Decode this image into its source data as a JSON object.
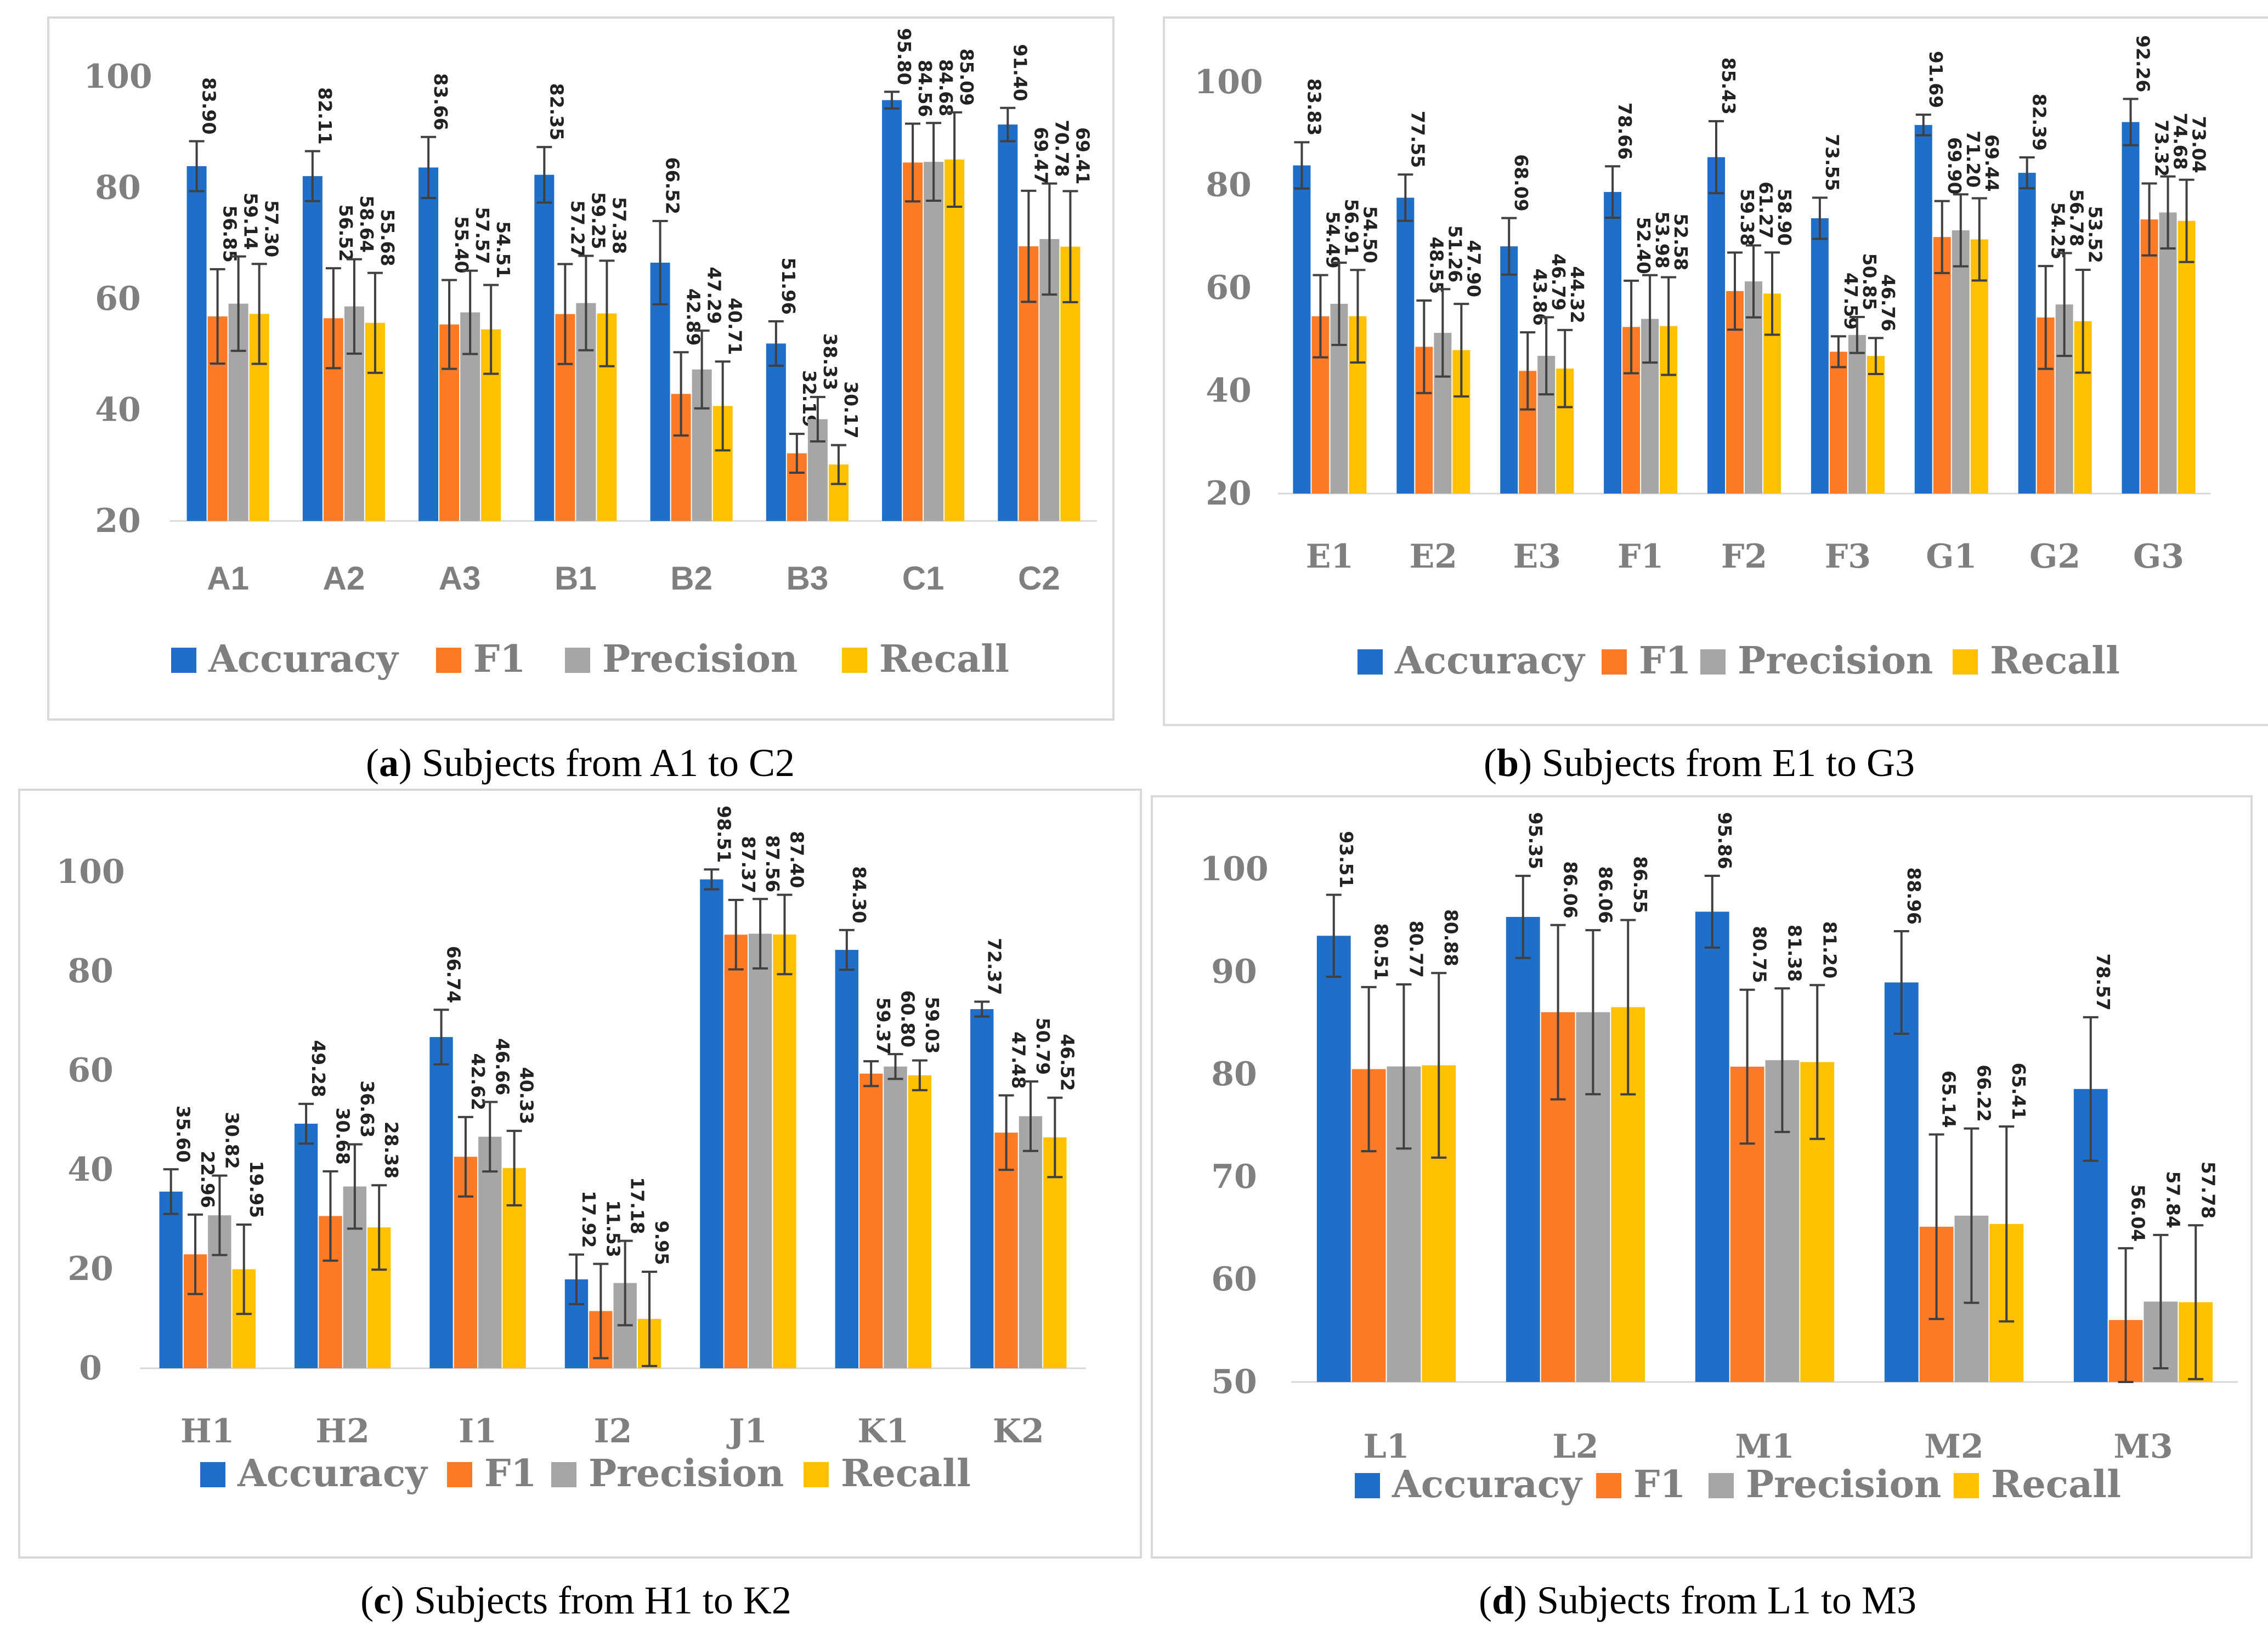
{
  "series_names": [
    "Accuracy",
    "F1",
    "Precision",
    "Recall"
  ],
  "colors": {
    "Accuracy": "#1f6fc8",
    "F1": "#fd7a26",
    "Precision": "#a6a6a6",
    "Recall": "#ffc000"
  },
  "chart_data": [
    {
      "type": "bar",
      "panel": "a",
      "caption_letter": "a",
      "caption_rest": "Subjects from A1 to C2",
      "categories": [
        "A1",
        "A2",
        "A3",
        "B1",
        "B2",
        "B3",
        "C1",
        "C2"
      ],
      "series": [
        {
          "name": "Accuracy",
          "values": [
            83.9,
            82.11,
            83.66,
            82.35,
            66.52,
            51.96,
            95.8,
            91.4
          ],
          "labels": [
            "83.90",
            "82.11",
            "83.66",
            "82.35",
            "66.52",
            "51.96",
            "95.80",
            "91.40"
          ]
        },
        {
          "name": "F1",
          "values": [
            56.85,
            56.52,
            55.4,
            57.27,
            42.89,
            32.19,
            84.56,
            69.47
          ],
          "labels": [
            "56.85",
            "56.52",
            "55.40",
            "57.27",
            "42.89",
            "32.19",
            "84.56",
            "69.47"
          ]
        },
        {
          "name": "Precision",
          "values": [
            59.14,
            58.64,
            57.57,
            59.25,
            47.29,
            38.33,
            84.68,
            70.78
          ],
          "labels": [
            "59.14",
            "58.64",
            "57.57",
            "59.25",
            "47.29",
            "38.33",
            "84.68",
            "70.78"
          ]
        },
        {
          "name": "Recall",
          "values": [
            57.3,
            55.68,
            54.51,
            57.38,
            40.71,
            30.17,
            85.09,
            69.41
          ],
          "labels": [
            "57.30",
            "55.68",
            "54.51",
            "57.38",
            "40.71",
            "30.17",
            "85.09",
            "69.41"
          ]
        }
      ],
      "errors": [
        [
          4.5,
          4.5,
          5.5,
          5.0,
          7.5,
          4.0,
          1.5,
          3.0
        ],
        [
          8.5,
          9.0,
          8.0,
          9.0,
          7.5,
          3.5,
          7.0,
          10.0
        ],
        [
          8.5,
          8.5,
          7.5,
          8.5,
          7.0,
          4.0,
          7.0,
          10.0
        ],
        [
          9.0,
          9.0,
          8.0,
          9.5,
          8.0,
          3.5,
          8.5,
          10.0
        ]
      ],
      "ylim": [
        20,
        100
      ],
      "yticks": [
        20,
        40,
        60,
        80,
        100
      ],
      "ytick_labels": [
        "20",
        "40",
        "60",
        "80",
        "100"
      ],
      "grid": false,
      "legend": "bottom"
    },
    {
      "type": "bar",
      "panel": "b",
      "caption_letter": "b",
      "caption_rest": "Subjects from E1 to G3",
      "categories": [
        "E1",
        "E2",
        "E3",
        "F1",
        "F2",
        "F3",
        "G1",
        "G2",
        "G3"
      ],
      "series": [
        {
          "name": "Accuracy",
          "values": [
            83.83,
            77.55,
            68.09,
            78.66,
            85.43,
            73.55,
            91.69,
            82.39,
            92.26
          ],
          "labels": [
            "83.83",
            "77.55",
            "68.09",
            "78.66",
            "85.43",
            "73.55",
            "91.69",
            "82.39",
            "92.26"
          ]
        },
        {
          "name": "F1",
          "values": [
            54.49,
            48.55,
            43.86,
            52.4,
            59.38,
            47.59,
            69.9,
            54.25,
            73.32
          ],
          "labels": [
            "54.49",
            "48.55",
            "43.86",
            "52.40",
            "59.38",
            "47.59",
            "69.90",
            "54.25",
            "73.32"
          ]
        },
        {
          "name": "Precision",
          "values": [
            56.91,
            51.26,
            46.79,
            53.98,
            61.27,
            50.85,
            71.2,
            56.78,
            74.68
          ],
          "labels": [
            "56.91",
            "51.26",
            "46.79",
            "53.98",
            "61.27",
            "50.85",
            "71.20",
            "56.78",
            "74.68"
          ]
        },
        {
          "name": "Recall",
          "values": [
            54.5,
            47.9,
            44.32,
            52.58,
            58.9,
            46.76,
            69.44,
            53.52,
            73.04
          ],
          "labels": [
            "54.50",
            "47.90",
            "44.32",
            "52.58",
            "58.90",
            "46.76",
            "69.44",
            "53.52",
            "73.04"
          ]
        }
      ],
      "errors": [
        [
          4.5,
          4.5,
          5.5,
          5.0,
          7.0,
          4.0,
          2.0,
          3.0,
          4.5
        ],
        [
          8.0,
          9.0,
          7.5,
          9.0,
          7.5,
          3.0,
          7.0,
          10.0,
          7.0
        ],
        [
          8.0,
          8.5,
          7.5,
          8.5,
          7.0,
          3.5,
          7.0,
          10.0,
          7.0
        ],
        [
          9.0,
          9.0,
          7.5,
          9.5,
          8.0,
          3.5,
          8.0,
          10.0,
          8.0
        ]
      ],
      "ylim": [
        20,
        100
      ],
      "yticks": [
        20,
        40,
        60,
        80,
        100
      ],
      "ytick_labels": [
        "20",
        "40",
        "60",
        "80",
        "100"
      ],
      "grid": false,
      "legend": "bottom"
    },
    {
      "type": "bar",
      "panel": "c",
      "caption_letter": "c",
      "caption_rest": "Subjects from H1 to K2",
      "categories": [
        "H1",
        "H2",
        "I1",
        "I2",
        "J1",
        "K1",
        "K2"
      ],
      "series": [
        {
          "name": "Accuracy",
          "values": [
            35.6,
            49.28,
            66.74,
            17.92,
            98.51,
            84.3,
            72.37
          ],
          "labels": [
            "35.60",
            "49.28",
            "66.74",
            "17.92",
            "98.51",
            "84.30",
            "72.37"
          ]
        },
        {
          "name": "F1",
          "values": [
            22.96,
            30.68,
            42.62,
            11.53,
            87.37,
            59.37,
            47.48
          ],
          "labels": [
            "22.96",
            "30.68",
            "42.62",
            "11.53",
            "87.37",
            "59.37",
            "47.48"
          ]
        },
        {
          "name": "Precision",
          "values": [
            30.82,
            36.63,
            46.66,
            17.18,
            87.56,
            60.8,
            50.79
          ],
          "labels": [
            "30.82",
            "36.63",
            "46.66",
            "17.18",
            "87.56",
            "60.80",
            "50.79"
          ]
        },
        {
          "name": "Recall",
          "values": [
            19.95,
            28.38,
            40.33,
            9.95,
            87.4,
            59.03,
            46.52
          ],
          "labels": [
            "19.95",
            "28.38",
            "40.33",
            "9.95",
            "87.40",
            "59.03",
            "46.52"
          ]
        }
      ],
      "errors": [
        [
          4.5,
          4.0,
          5.5,
          5.0,
          2.0,
          4.0,
          1.5
        ],
        [
          8.0,
          9.0,
          8.0,
          9.5,
          7.0,
          2.5,
          7.5
        ],
        [
          8.0,
          8.5,
          7.0,
          8.5,
          7.0,
          2.5,
          7.0
        ],
        [
          9.0,
          8.5,
          7.5,
          9.5,
          8.0,
          3.0,
          8.0
        ]
      ],
      "ylim": [
        0,
        100
      ],
      "yticks": [
        0,
        20,
        40,
        60,
        80,
        100
      ],
      "ytick_labels": [
        "0",
        "20",
        "40",
        "60",
        "80",
        "100"
      ],
      "grid": false,
      "legend": "bottom"
    },
    {
      "type": "bar",
      "panel": "d",
      "caption_letter": "d",
      "caption_rest": "Subjects from L1 to M3",
      "categories": [
        "L1",
        "L2",
        "M1",
        "M2",
        "M3"
      ],
      "series": [
        {
          "name": "Accuracy",
          "values": [
            93.51,
            95.35,
            95.86,
            88.96,
            78.57
          ],
          "labels": [
            "93.51",
            "95.35",
            "95.86",
            "88.96",
            "78.57"
          ]
        },
        {
          "name": "F1",
          "values": [
            80.51,
            86.06,
            80.75,
            65.14,
            56.04
          ],
          "labels": [
            "80.51",
            "86.06",
            "80.75",
            "65.14",
            "56.04"
          ]
        },
        {
          "name": "Precision",
          "values": [
            80.77,
            86.06,
            81.38,
            66.22,
            57.84
          ],
          "labels": [
            "80.77",
            "86.06",
            "81.38",
            "66.22",
            "57.84"
          ]
        },
        {
          "name": "Recall",
          "values": [
            80.88,
            86.55,
            81.2,
            65.41,
            57.78
          ],
          "labels": [
            "80.88",
            "86.55",
            "81.20",
            "65.41",
            "57.78"
          ]
        }
      ],
      "errors": [
        [
          4.0,
          4.0,
          3.5,
          5.0,
          7.0
        ],
        [
          8.0,
          8.5,
          7.5,
          9.0,
          7.0
        ],
        [
          8.0,
          8.0,
          7.0,
          8.5,
          6.5
        ],
        [
          9.0,
          8.5,
          7.5,
          9.5,
          7.5
        ]
      ],
      "ylim": [
        50,
        100
      ],
      "yticks": [
        50,
        60,
        70,
        80,
        90,
        100
      ],
      "ytick_labels": [
        "50",
        "60",
        "70",
        "80",
        "90",
        "100"
      ],
      "grid": false,
      "legend": "bottom"
    }
  ]
}
